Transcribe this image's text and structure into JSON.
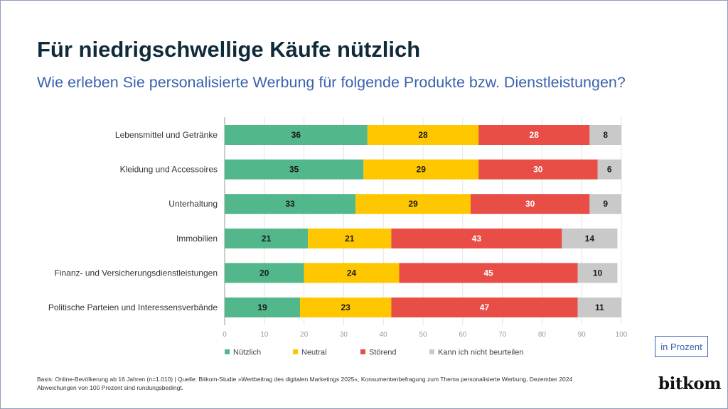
{
  "title": "Für niedrigschwellige Käufe nützlich",
  "subtitle": "Wie erleben Sie personalisierte Werbung für folgende Produkte bzw. Dienstleistungen?",
  "unit_label": "in Prozent",
  "footnote": {
    "line1": "Basis: Online-Bevölkerung ab 16 Jahren (n=1.010) | Quelle: Bitkom-Studie »Wertbeitrag des digitalen Marketings 2025«, Konsumentenbefragung zum Thema personalisierte Werbung, Dezember 2024",
    "line2": "Abweichungen von 100 Prozent sind rundungsbedingt."
  },
  "logo": "bitkom",
  "chart_data": {
    "type": "bar",
    "orientation": "horizontal",
    "stacked": true,
    "categories": [
      "Lebensmittel und Getränke",
      "Kleidung und Accessoires",
      "Unterhaltung",
      "Immobilien",
      "Finanz- und Versicherungsdienstleistungen",
      "Politische Parteien und Interessensverbände"
    ],
    "series": [
      {
        "name": "Nützlich",
        "color": "#52b78a",
        "label_color": "#1a1a1a",
        "values": [
          36,
          35,
          33,
          21,
          20,
          19
        ]
      },
      {
        "name": "Neutral",
        "color": "#ffc700",
        "label_color": "#1a1a1a",
        "values": [
          28,
          29,
          29,
          21,
          24,
          23
        ]
      },
      {
        "name": "Störend",
        "color": "#e84d46",
        "label_color": "#ffffff",
        "values": [
          28,
          30,
          30,
          43,
          45,
          47
        ]
      },
      {
        "name": "Kann ich nicht beurteilen",
        "color": "#c9c9c9",
        "label_color": "#1a1a1a",
        "values": [
          8,
          6,
          9,
          14,
          10,
          11
        ]
      }
    ],
    "xlim": [
      0,
      100
    ],
    "xticks": [
      "0",
      "10",
      "20",
      "30",
      "40",
      "50",
      "60",
      "70",
      "80",
      "90",
      "100"
    ],
    "grid": true,
    "legend_position": "bottom"
  }
}
